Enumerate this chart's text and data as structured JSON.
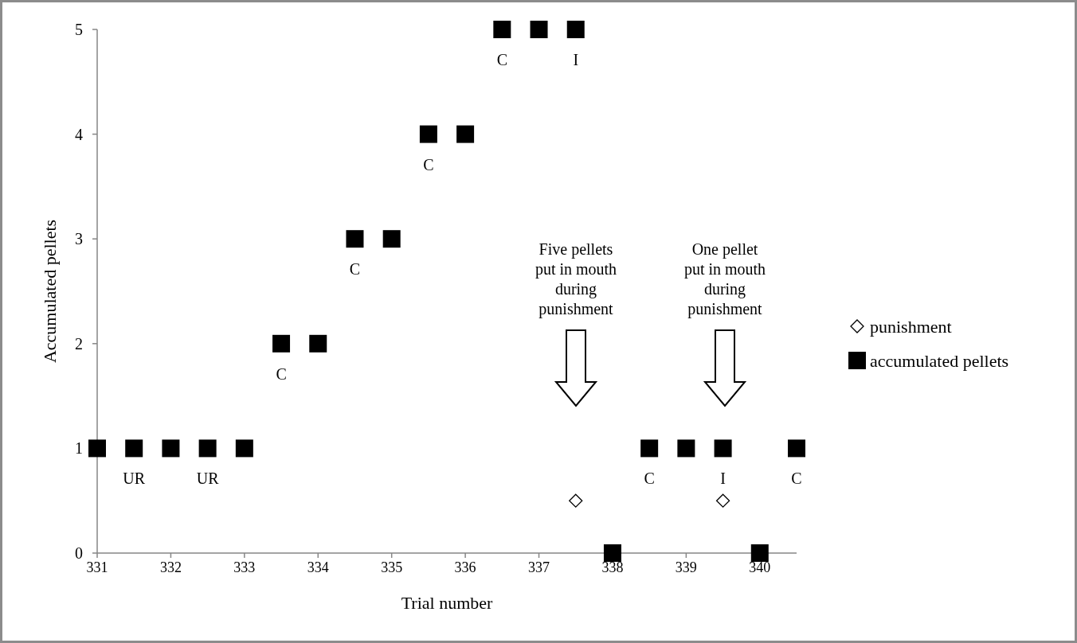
{
  "chart_data": {
    "type": "scatter",
    "xlabel": "Trial number",
    "ylabel": "Accumulated pellets",
    "xlim": [
      331,
      340.5
    ],
    "ylim": [
      0,
      5
    ],
    "xticks": [
      331,
      332,
      333,
      334,
      335,
      336,
      337,
      338,
      339,
      340
    ],
    "yticks": [
      0,
      1,
      2,
      3,
      4,
      5
    ],
    "grid": false,
    "legend": "right",
    "series": [
      {
        "name": "punishment",
        "color": "#000000",
        "marker": "diamond",
        "x": [
          337.5,
          339.5
        ],
        "values": [
          0.5,
          0.5
        ]
      },
      {
        "name": "accumulated pellets",
        "color": "#000000",
        "marker": "square",
        "x": [
          331,
          331.5,
          332,
          332.5,
          333,
          333.5,
          334,
          334.5,
          335,
          335.5,
          336,
          336.5,
          337,
          337.5,
          338,
          338.5,
          339,
          339.5,
          340,
          340.5
        ],
        "values": [
          1,
          1,
          1,
          1,
          1,
          2,
          2,
          3,
          3,
          4,
          4,
          5,
          5,
          5,
          0,
          1,
          1,
          1,
          0,
          1
        ]
      }
    ],
    "annotations": [
      {
        "text": "UR",
        "x": 331.5,
        "y": 1
      },
      {
        "text": "UR",
        "x": 332.5,
        "y": 1
      },
      {
        "text": "C",
        "x": 333.5,
        "y": 2
      },
      {
        "text": "C",
        "x": 334.5,
        "y": 3
      },
      {
        "text": "C",
        "x": 335.5,
        "y": 4
      },
      {
        "text": "C",
        "x": 336.5,
        "y": 5
      },
      {
        "text": "I",
        "x": 337.5,
        "y": 5
      },
      {
        "text": "C",
        "x": 338.5,
        "y": 1
      },
      {
        "text": "I",
        "x": 339.5,
        "y": 1
      },
      {
        "text": "C",
        "x": 340.5,
        "y": 1
      },
      "Five pellets put in mouth during punishment",
      "One pellet put in mouth during punishment"
    ]
  }
}
